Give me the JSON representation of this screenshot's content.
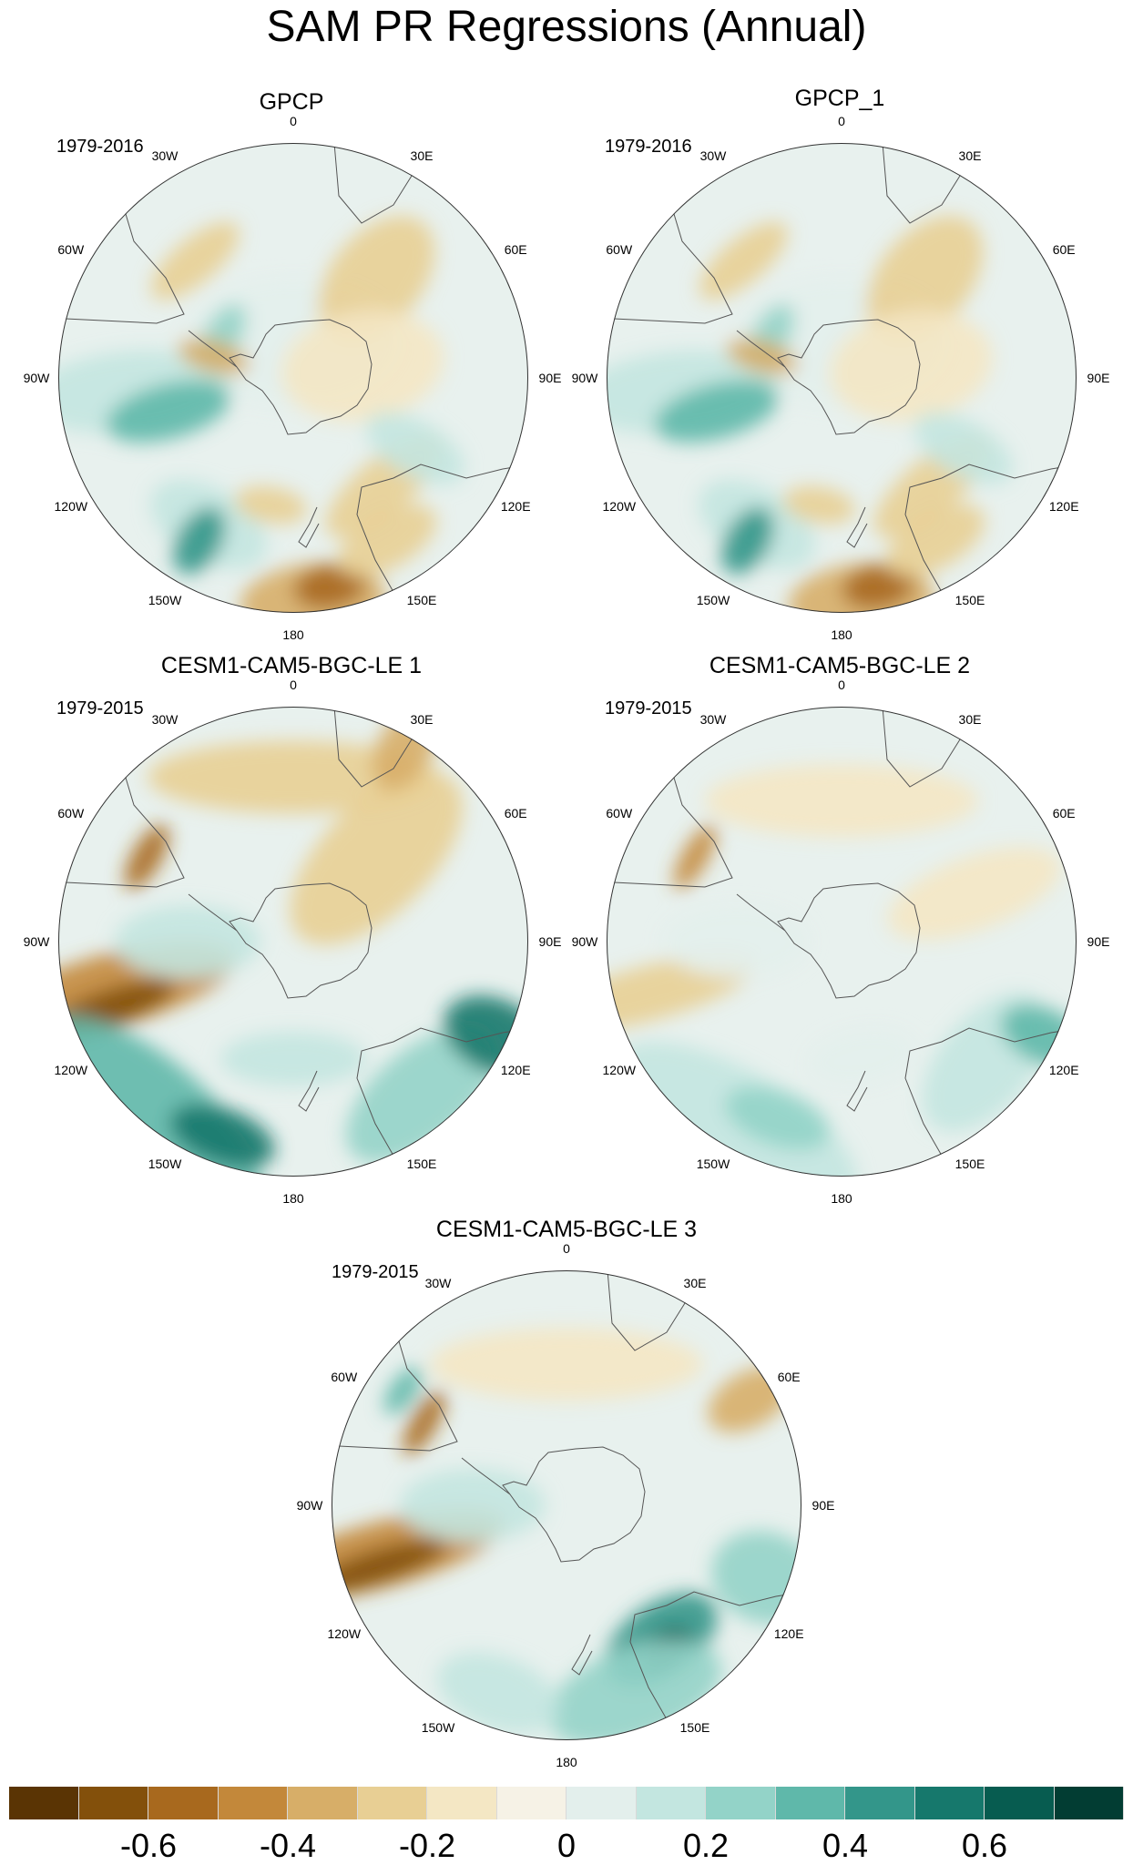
{
  "title": "SAM PR Regressions (Annual)",
  "panels": [
    {
      "title": "GPCP",
      "period": "1979-2016",
      "variant": "obs"
    },
    {
      "title": "GPCP_1",
      "period": "1979-2016",
      "variant": "obs"
    },
    {
      "title": "CESM1-CAM5-BGC-LE 1",
      "period": "1979-2015",
      "variant": "le1"
    },
    {
      "title": "CESM1-CAM5-BGC-LE 2",
      "period": "1979-2015",
      "variant": "le2"
    },
    {
      "title": "CESM1-CAM5-BGC-LE 3",
      "period": "1979-2015",
      "variant": "le3"
    }
  ],
  "longitude_labels": [
    "0",
    "30E",
    "60E",
    "90E",
    "120E",
    "150E",
    "180",
    "150W",
    "120W",
    "90W",
    "60W",
    "30W"
  ],
  "colorbar": {
    "colors": [
      "#5a3404",
      "#83500b",
      "#a8691e",
      "#c3883a",
      "#d7ae68",
      "#e8cf94",
      "#f4e7c4",
      "#f6f2e6",
      "#e3efec",
      "#c3e6e0",
      "#93d3c8",
      "#5fb8aa",
      "#33968a",
      "#16786c",
      "#075c50",
      "#023d33"
    ],
    "labels": [
      "-0.6",
      "-0.4",
      "-0.2",
      "0",
      "0.2",
      "0.4",
      "0.6"
    ]
  }
}
